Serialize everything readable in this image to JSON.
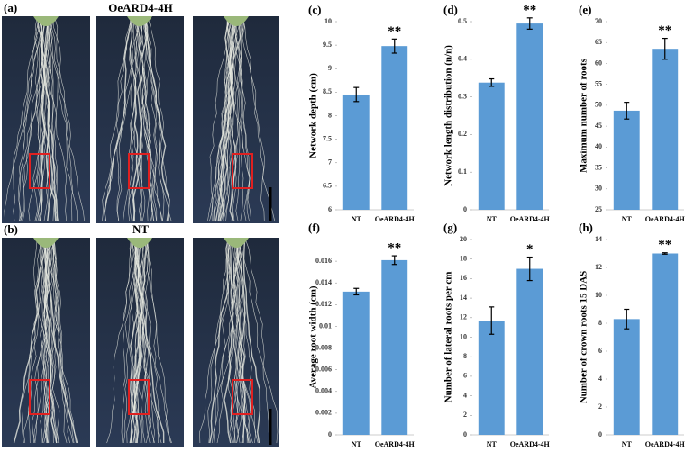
{
  "photo_panels": [
    {
      "label": "(a)",
      "title": "OeARD4-4H"
    },
    {
      "label": "(b)",
      "title": "NT"
    }
  ],
  "chart_data": [
    {
      "type": "bar",
      "panel": "(c)",
      "ylabel": "Network depth (cm)",
      "categories": [
        "NT",
        "OeARD4-4H"
      ],
      "values": [
        8.45,
        9.48
      ],
      "errors": [
        0.15,
        0.15
      ],
      "significance": [
        null,
        "**"
      ],
      "color": "#5b9bd5",
      "ylim": [
        6,
        10
      ],
      "yticks": [
        6,
        6.5,
        7,
        7.5,
        8,
        8.5,
        9,
        9.5,
        10
      ]
    },
    {
      "type": "bar",
      "panel": "(d)",
      "ylabel": "Network length distribution (n/n)",
      "categories": [
        "NT",
        "OeARD4-4H"
      ],
      "values": [
        0.338,
        0.495
      ],
      "errors": [
        0.01,
        0.015
      ],
      "significance": [
        null,
        "**"
      ],
      "color": "#5b9bd5",
      "ylim": [
        0,
        0.5
      ],
      "yticks": [
        0,
        0.1,
        0.2,
        0.3,
        0.4,
        0.5
      ]
    },
    {
      "type": "bar",
      "panel": "(e)",
      "ylabel": "Maximum number of roots",
      "categories": [
        "NT",
        "OeARD4-4H"
      ],
      "values": [
        48.7,
        63.5
      ],
      "errors": [
        2,
        2.5
      ],
      "significance": [
        null,
        "**"
      ],
      "color": "#5b9bd5",
      "ylim": [
        25,
        70
      ],
      "yticks": [
        25,
        30,
        35,
        40,
        45,
        50,
        55,
        60,
        65,
        70
      ]
    },
    {
      "type": "bar",
      "panel": "(f)",
      "ylabel": "Average root width (cm)",
      "categories": [
        "NT",
        "OeARD4-4H"
      ],
      "values": [
        0.0132,
        0.0161
      ],
      "errors": [
        0.0003,
        0.0004
      ],
      "significance": [
        null,
        "**"
      ],
      "color": "#5b9bd5",
      "ylim": [
        0,
        0.018
      ],
      "yticks": [
        0,
        0.002,
        0.004,
        0.006,
        0.008,
        0.01,
        0.012,
        0.014,
        0.016
      ]
    },
    {
      "type": "bar",
      "panel": "(g)",
      "ylabel": "Number of lateral roots per cm",
      "categories": [
        "NT",
        "OeARD4-4H"
      ],
      "values": [
        11.7,
        17
      ],
      "errors": [
        1.4,
        1.2
      ],
      "significance": [
        null,
        "*"
      ],
      "color": "#5b9bd5",
      "ylim": [
        0,
        20
      ],
      "yticks": [
        0,
        2,
        4,
        6,
        8,
        10,
        12,
        14,
        16,
        18,
        20
      ]
    },
    {
      "type": "bar",
      "panel": "(h)",
      "ylabel": "Number of crown roots 15 DAS",
      "categories": [
        "NT",
        "OeARD4-4H"
      ],
      "values": [
        8.3,
        13
      ],
      "errors": [
        0.7,
        0.05
      ],
      "significance": [
        null,
        "**"
      ],
      "color": "#5b9bd5",
      "ylim": [
        0,
        14
      ],
      "yticks": [
        0,
        2,
        4,
        6,
        8,
        10,
        12,
        14
      ]
    }
  ]
}
